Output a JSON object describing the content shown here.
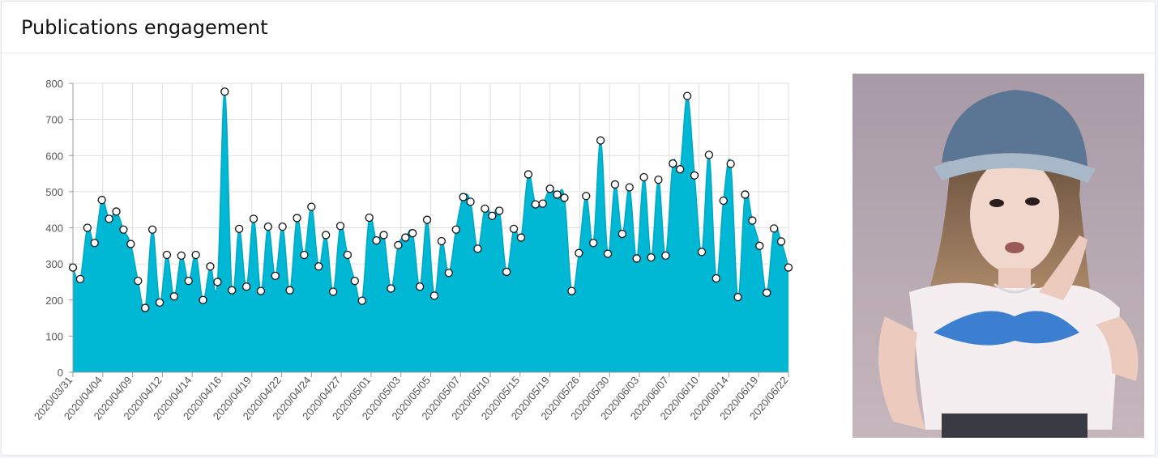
{
  "card": {
    "title": "Publications engagement"
  },
  "chart_data": {
    "type": "area",
    "title": "",
    "xlabel": "",
    "ylabel": "",
    "ylim": [
      0,
      800
    ],
    "yticks": [
      0,
      100,
      200,
      300,
      400,
      500,
      600,
      700,
      800
    ],
    "grid": true,
    "legend": "none",
    "colors": {
      "fill": "#00b8d4",
      "stroke": "#00a8c4",
      "marker_fill": "#ffffff",
      "marker_stroke": "#111111",
      "grid": "#e0e0e0"
    },
    "x_tick_labels": [
      "2020/03/31",
      "2020/04/04",
      "2020/04/09",
      "2020/04/12",
      "2020/04/14",
      "2020/04/16",
      "2020/04/19",
      "2020/04/22",
      "2020/04/24",
      "2020/04/27",
      "2020/05/01",
      "2020/05/03",
      "2020/05/05",
      "2020/05/07",
      "2020/05/10",
      "2020/05/15",
      "2020/05/19",
      "2020/05/26",
      "2020/05/30",
      "2020/06/03",
      "2020/06/07",
      "2020/06/10",
      "2020/06/14",
      "2020/06/19",
      "2020/06/22"
    ],
    "values": [
      290,
      258,
      400,
      358,
      477,
      425,
      445,
      395,
      355,
      253,
      178,
      395,
      193,
      325,
      210,
      323,
      253,
      325,
      200,
      293,
      250,
      777,
      227,
      397,
      237,
      425,
      225,
      403,
      267,
      403,
      227,
      427,
      325,
      458,
      293,
      380,
      223,
      405,
      325,
      253,
      198,
      428,
      365,
      380,
      232,
      352,
      373,
      385,
      237,
      422,
      212,
      363,
      275,
      395,
      485,
      472,
      342,
      453,
      433,
      447,
      278,
      397,
      373,
      548,
      465,
      467,
      508,
      492,
      483,
      225,
      330,
      488,
      358,
      642,
      328,
      520,
      383,
      512,
      315,
      540,
      318,
      533,
      323,
      578,
      562,
      765,
      545,
      333,
      602,
      260,
      475,
      577,
      208,
      492,
      420,
      350,
      220,
      398,
      362,
      290
    ]
  },
  "photo": {
    "alt": "profile photo"
  }
}
